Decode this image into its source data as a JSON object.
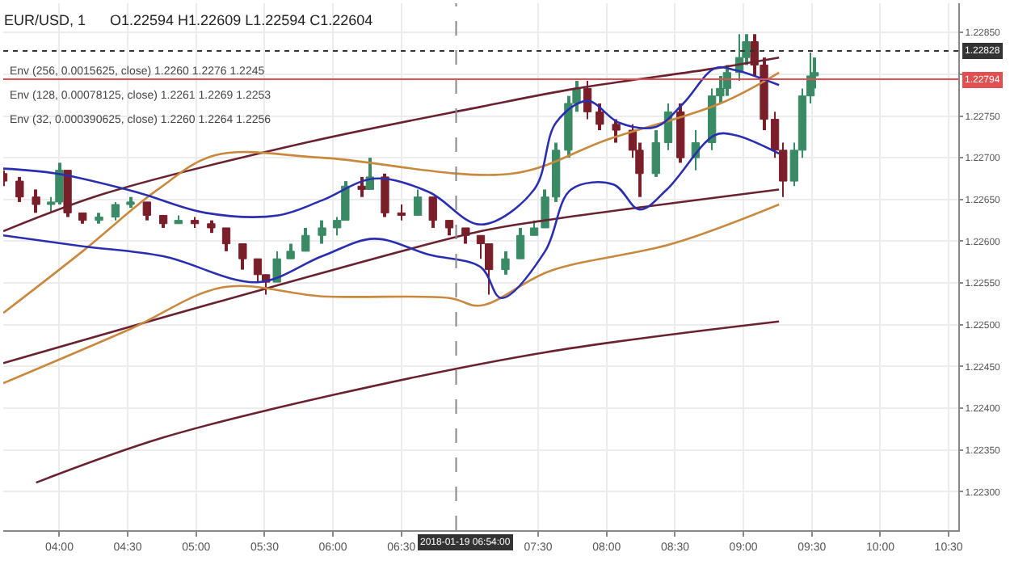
{
  "chart_data": {
    "type": "candlestick",
    "title": "EUR/USD, 1",
    "subtitle": "O1.22594 H1.22609 L1.22594 C1.22604",
    "annotations": [
      "Env (256, 0.0015625, close) 1.2260 1.2276 1.2245",
      "Env (128, 0.00078125, close) 1.2261 1.2269 1.2253",
      "Env (32, 0.000390625, close) 1.2260 1.2264 1.2256",
      "2018-01-19 06:54:00"
    ],
    "colors": [
      "#7a1f2a",
      "#7a1f2a",
      "#7a1f2a",
      "#3b8a66",
      "#3b8a66",
      "#7a1f2a",
      "#7a1f2a",
      "#3b8a66",
      "#3b8a66",
      "#3b8a66",
      "#7a1f2a",
      "#7a1f2a",
      "#3b8a66",
      "#7a1f2a",
      "#7a1f2a",
      "#7a1f2a",
      "#7a1f2a",
      "#7a1f2a",
      "#7a1f2a",
      "#3b8a66",
      "#3b8a66",
      "#3b8a66",
      "#3b8a66",
      "#3b8a66",
      "#3b8a66",
      "#7a1f2a",
      "#3b8a66",
      "#7a1f2a",
      "#7a1f2a",
      "#3b8a66",
      "#7a1f2a",
      "#7a1f2a",
      "#7a1f2a",
      "#7a1f2a",
      "#7a1f2a",
      "#3b8a66",
      "#3b8a66",
      "#3b8a66",
      "#3b8a66",
      "#3b8a66",
      "#3b8a66",
      "#3b8a66",
      "#7a1f2a",
      "#7a1f2a",
      "#7a1f2a",
      "#7a1f2a",
      "#7a1f2a",
      "#3b8a66",
      "#3b8a66",
      "#7a1f2a",
      "#3b8a66",
      "#3b8a66",
      "#3b8a66",
      "#3b8a66",
      "#3b8a66",
      "#3b8a66",
      "#7a1f2a",
      "#7a1f2a",
      "#7a1f2a",
      "#7a1f2a",
      "#3b8a66",
      "#3b8a66",
      "#3b8a66",
      "#3b8a66"
    ],
    "x": [
      3.59,
      3.71,
      3.83,
      3.94,
      4.0,
      4.06,
      4.17,
      4.29,
      4.41,
      4.52,
      4.64,
      4.76,
      4.87,
      4.99,
      5.11,
      5.22,
      5.34,
      5.45,
      5.51,
      5.59,
      5.69,
      5.8,
      5.92,
      6.03,
      6.09,
      6.21,
      6.27,
      6.38,
      6.5,
      6.62,
      6.73,
      6.85,
      6.97,
      7.08,
      7.14,
      7.26,
      7.37,
      7.47,
      7.55,
      7.63,
      7.72,
      7.78,
      7.86,
      7.95,
      8.07,
      8.19,
      8.24,
      8.36,
      8.45,
      8.54,
      8.65,
      8.77,
      8.83,
      8.88,
      8.97,
      9.02,
      9.08,
      9.15,
      9.23,
      9.29,
      9.37,
      9.43,
      9.49,
      9.52
    ],
    "ohlc": [
      [
        1.22681,
        1.22685,
        1.22666,
        1.22672
      ],
      [
        1.22672,
        1.22677,
        1.22647,
        1.22653
      ],
      [
        1.22653,
        1.22662,
        1.22634,
        1.22644
      ],
      [
        1.22644,
        1.22653,
        1.22634,
        1.22647
      ],
      [
        1.22647,
        1.22694,
        1.22644,
        1.22685
      ],
      [
        1.22685,
        1.22685,
        1.22629,
        1.22634
      ],
      [
        1.22634,
        1.22634,
        1.22621,
        1.22625
      ],
      [
        1.22625,
        1.22634,
        1.22621,
        1.22629
      ],
      [
        1.22629,
        1.22647,
        1.22625,
        1.22644
      ],
      [
        1.22644,
        1.22653,
        1.2264,
        1.22647
      ],
      [
        1.22647,
        1.22647,
        1.22625,
        1.22631
      ],
      [
        1.22631,
        1.22631,
        1.22616,
        1.22621
      ],
      [
        1.22621,
        1.22631,
        1.22621,
        1.22625
      ],
      [
        1.22625,
        1.22629,
        1.22616,
        1.22621
      ],
      [
        1.22621,
        1.22625,
        1.2261,
        1.22616
      ],
      [
        1.22616,
        1.22616,
        1.22588,
        1.22597
      ],
      [
        1.22597,
        1.22597,
        1.22566,
        1.22579
      ],
      [
        1.22579,
        1.22579,
        1.22551,
        1.2256
      ],
      [
        1.2256,
        1.2256,
        1.22536,
        1.22551
      ],
      [
        1.22551,
        1.22588,
        1.22551,
        1.22579
      ],
      [
        1.22579,
        1.22597,
        1.22579,
        1.22588
      ],
      [
        1.22588,
        1.22616,
        1.22588,
        1.22607
      ],
      [
        1.22607,
        1.22625,
        1.22597,
        1.22616
      ],
      [
        1.22616,
        1.22629,
        1.22607,
        1.22625
      ],
      [
        1.22625,
        1.22672,
        1.22625,
        1.22666
      ],
      [
        1.22666,
        1.22677,
        1.22653,
        1.22662
      ],
      [
        1.22662,
        1.227,
        1.22662,
        1.22677
      ],
      [
        1.22677,
        1.22681,
        1.22629,
        1.22634
      ],
      [
        1.22634,
        1.22644,
        1.22625,
        1.22631
      ],
      [
        1.22631,
        1.22662,
        1.22631,
        1.22653
      ],
      [
        1.22653,
        1.22653,
        1.22616,
        1.22625
      ],
      [
        1.22625,
        1.22625,
        1.22607,
        1.22616
      ],
      [
        1.22616,
        1.22616,
        1.22597,
        1.22607
      ],
      [
        1.22607,
        1.22607,
        1.22579,
        1.22597
      ],
      [
        1.22597,
        1.22597,
        1.22536,
        1.22566
      ],
      [
        1.22566,
        1.22588,
        1.2256,
        1.22579
      ],
      [
        1.22579,
        1.22616,
        1.22579,
        1.22607
      ],
      [
        1.22607,
        1.22625,
        1.22607,
        1.22616
      ],
      [
        1.22616,
        1.22662,
        1.22616,
        1.22653
      ],
      [
        1.22653,
        1.22718,
        1.22647,
        1.22709
      ],
      [
        1.22709,
        1.22774,
        1.227,
        1.22765
      ],
      [
        1.22765,
        1.22792,
        1.22755,
        1.22783
      ],
      [
        1.22783,
        1.22792,
        1.22746,
        1.22755
      ],
      [
        1.22755,
        1.22765,
        1.22733,
        1.2274
      ],
      [
        1.2274,
        1.22746,
        1.22718,
        1.22733
      ],
      [
        1.22733,
        1.2274,
        1.227,
        1.22709
      ],
      [
        1.22709,
        1.22718,
        1.22653,
        1.22681
      ],
      [
        1.22681,
        1.22733,
        1.22677,
        1.22718
      ],
      [
        1.22718,
        1.22765,
        1.22709,
        1.22755
      ],
      [
        1.22755,
        1.22765,
        1.22694,
        1.227
      ],
      [
        1.227,
        1.22733,
        1.22685,
        1.22718
      ],
      [
        1.22718,
        1.22783,
        1.22709,
        1.22774
      ],
      [
        1.22774,
        1.22798,
        1.22765,
        1.22783
      ],
      [
        1.22783,
        1.22811,
        1.22774,
        1.22802
      ],
      [
        1.22802,
        1.22848,
        1.22792,
        1.2282
      ],
      [
        1.2282,
        1.22848,
        1.22811,
        1.22839
      ],
      [
        1.22839,
        1.22848,
        1.22798,
        1.22811
      ],
      [
        1.22811,
        1.2282,
        1.22733,
        1.22746
      ],
      [
        1.22746,
        1.22755,
        1.227,
        1.22709
      ],
      [
        1.22709,
        1.22718,
        1.22653,
        1.22672
      ],
      [
        1.22672,
        1.22718,
        1.22666,
        1.22709
      ],
      [
        1.22709,
        1.22783,
        1.227,
        1.22774
      ],
      [
        1.22774,
        1.22826,
        1.22765,
        1.22798
      ],
      [
        1.22798,
        1.2282,
        1.22783,
        1.22802
      ]
    ],
    "series": [
      {
        "type": "line",
        "color": "#6b2230",
        "x": [
          3.59,
          4.33,
          5.8,
          7.08,
          7.78,
          8.79,
          9.26
        ],
        "values": [
          1.22612,
          1.22657,
          1.22718,
          1.22761,
          1.22783,
          1.22807,
          1.2282
        ]
      },
      {
        "type": "line",
        "color": "#6b2230",
        "x": [
          3.59,
          5.48,
          7.08,
          7.55,
          9.26
        ],
        "values": [
          1.22454,
          1.22542,
          1.22612,
          1.22625,
          1.22662
        ]
      },
      {
        "type": "line",
        "color": "#6b2230",
        "x": [
          3.83,
          4.76,
          6.03,
          7.55,
          9.26
        ],
        "values": [
          1.22311,
          1.22365,
          1.22417,
          1.22467,
          1.22504
        ]
      },
      {
        "type": "line",
        "color": "#c8893f",
        "x": [
          3.59,
          4.17,
          4.72,
          5.14,
          5.92,
          7.31,
          8.01,
          8.83,
          9.26
        ],
        "values": [
          1.22514,
          1.22588,
          1.22662,
          1.22703,
          1.227,
          1.22681,
          1.22722,
          1.22765,
          1.22802
        ]
      },
      {
        "type": "line",
        "color": "#c8893f",
        "x": [
          3.59,
          4.52,
          5.2,
          5.92,
          6.85,
          7.08,
          7.58,
          8.48,
          9.26
        ],
        "values": [
          1.2243,
          1.22495,
          1.22545,
          1.22534,
          1.22532,
          1.22523,
          1.22564,
          1.22597,
          1.22644
        ]
      },
      {
        "type": "line",
        "color": "#2a2fb0",
        "x": [
          3.59,
          3.98,
          4.56,
          5.07,
          5.6,
          5.92,
          6.3,
          6.7,
          7.08,
          7.47,
          7.63,
          7.86,
          8.09,
          8.36,
          8.56,
          8.79,
          8.94,
          9.26
        ],
        "values": [
          1.22687,
          1.22681,
          1.22659,
          1.22634,
          1.22631,
          1.22649,
          1.22675,
          1.22659,
          1.2262,
          1.22662,
          1.22742,
          1.22768,
          1.22742,
          1.22737,
          1.22765,
          1.22807,
          1.22805,
          1.22787
        ]
      },
      {
        "type": "line",
        "color": "#2a2fb0",
        "x": [
          3.59,
          4.17,
          4.76,
          5.45,
          5.92,
          6.3,
          6.7,
          7.08,
          7.23,
          7.55,
          7.74,
          8.05,
          8.24,
          8.44,
          8.79,
          8.94,
          9.26
        ],
        "values": [
          1.22607,
          1.22594,
          1.22582,
          1.22551,
          1.22582,
          1.22603,
          1.22584,
          1.22569,
          1.22532,
          1.22588,
          1.22662,
          1.22668,
          1.22638,
          1.22662,
          1.22727,
          1.22727,
          1.22705
        ]
      }
    ],
    "xlim": [
      3.59,
      10.57
    ],
    "xticks": [
      {
        "value": 4,
        "label": "04:00"
      },
      {
        "value": 4.5,
        "label": "04:30"
      },
      {
        "value": 5,
        "label": "05:00"
      },
      {
        "value": 5.5,
        "label": "05:30"
      },
      {
        "value": 6,
        "label": "06:00"
      },
      {
        "value": 6.5,
        "label": "06:30"
      },
      {
        "value": 7.5,
        "label": "07:30"
      },
      {
        "value": 8,
        "label": "08:00"
      },
      {
        "value": 8.5,
        "label": "08:30"
      },
      {
        "value": 9,
        "label": "09:00"
      },
      {
        "value": 9.5,
        "label": "09:30"
      },
      {
        "value": 10,
        "label": "10:00"
      },
      {
        "value": 10.5,
        "label": "10:30"
      }
    ],
    "ylim": [
      1.22254,
      1.22885
    ],
    "yticks": [
      {
        "value": 1.223,
        "label": "1.22300"
      },
      {
        "value": 1.2235,
        "label": "1.22350"
      },
      {
        "value": 1.224,
        "label": "1.22400"
      },
      {
        "value": 1.2245,
        "label": "1.22450"
      },
      {
        "value": 1.225,
        "label": "1.22500"
      },
      {
        "value": 1.2255,
        "label": "1.22550"
      },
      {
        "value": 1.226,
        "label": "1.22600"
      },
      {
        "value": 1.2265,
        "label": "1.22650"
      },
      {
        "value": 1.227,
        "label": "1.22700"
      },
      {
        "value": 1.2275,
        "label": "1.22750"
      },
      {
        "value": 1.228,
        "label": null
      },
      {
        "value": 1.2285,
        "label": "1.22850"
      }
    ],
    "ref_lines": [
      {
        "axis": "y",
        "value": 1.22828,
        "label": "1.22828",
        "color": "#333333",
        "line_style": "dotted"
      },
      {
        "axis": "y",
        "value": 1.22794,
        "label": "1.22794",
        "color": "#e05050",
        "line_style": "solid"
      },
      {
        "axis": "x",
        "value": 6.9,
        "color": "#888888",
        "line_style": "dashed"
      }
    ],
    "grid": true
  }
}
